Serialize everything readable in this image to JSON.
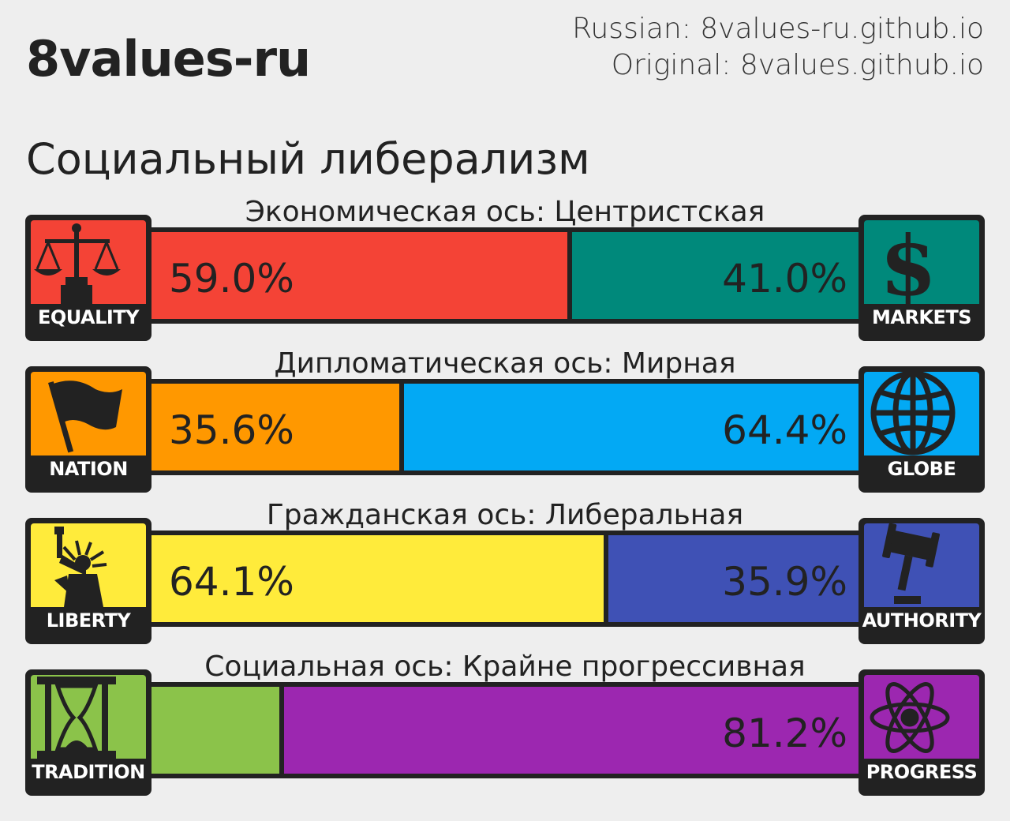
{
  "header": {
    "site_title": "8values-ru",
    "russian_link": "Russian: 8values-ru.github.io",
    "original_link": "Original: 8values.github.io"
  },
  "ideology": "Социальный либерализм",
  "chart_data": {
    "type": "bar",
    "stacked": true,
    "orientation": "horizontal",
    "xlim": [
      0,
      100
    ],
    "axes": [
      {
        "title": "Экономическая ось: Центристская",
        "left": {
          "name": "EQUALITY",
          "value": 59.0,
          "label": "59.0%",
          "color": "#f44336",
          "icon": "scales-icon"
        },
        "right": {
          "name": "MARKETS",
          "value": 41.0,
          "label": "41.0%",
          "color": "#00897b",
          "icon": "dollar-icon"
        }
      },
      {
        "title": "Дипломатическая ось: Мирная",
        "left": {
          "name": "NATION",
          "value": 35.6,
          "label": "35.6%",
          "color": "#ff9800",
          "icon": "flag-icon"
        },
        "right": {
          "name": "GLOBE",
          "value": 64.4,
          "label": "64.4%",
          "color": "#03a9f4",
          "icon": "globe-icon"
        }
      },
      {
        "title": "Гражданская ось: Либеральная",
        "left": {
          "name": "LIBERTY",
          "value": 64.1,
          "label": "64.1%",
          "color": "#ffeb3b",
          "icon": "statue-of-liberty-icon"
        },
        "right": {
          "name": "AUTHORITY",
          "value": 35.9,
          "label": "35.9%",
          "color": "#3f51b5",
          "icon": "gavel-icon"
        }
      },
      {
        "title": "Социальная ось: Крайне прогрессивная",
        "left": {
          "name": "TRADITION",
          "value": 18.8,
          "label": "",
          "color": "#8bc34a",
          "icon": "hourglass-icon"
        },
        "right": {
          "name": "PROGRESS",
          "value": 81.2,
          "label": "81.2%",
          "color": "#9c27b0",
          "icon": "atom-icon"
        }
      }
    ]
  }
}
